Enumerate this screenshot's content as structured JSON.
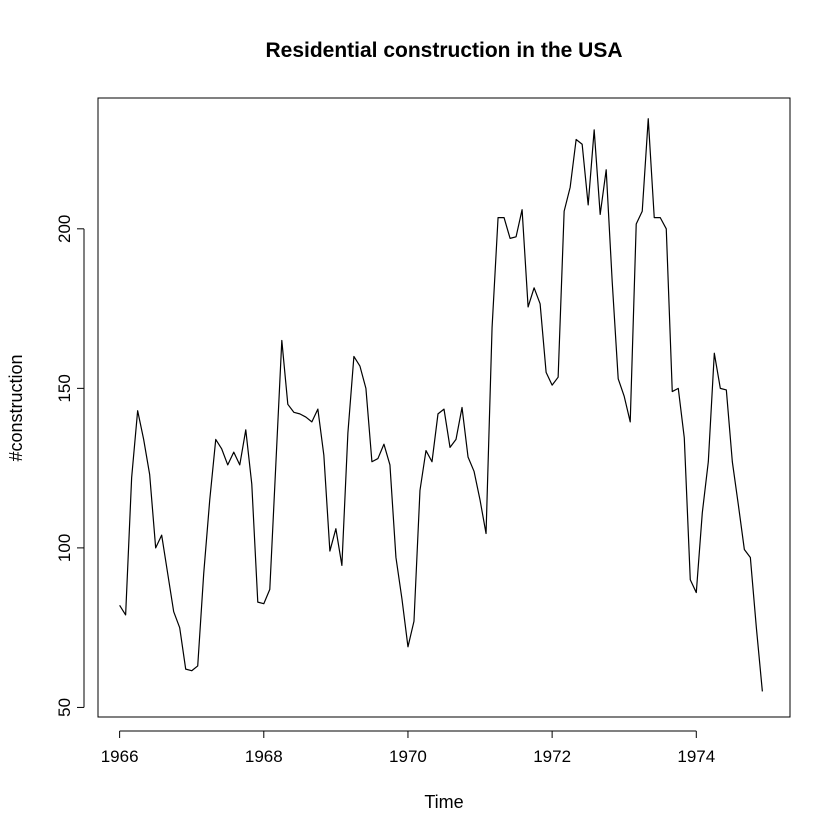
{
  "chart_data": {
    "type": "line",
    "title": "Residential construction in the USA",
    "xlabel": "Time",
    "ylabel": "#construction",
    "xlim": [
      1965.7,
      1975.3
    ],
    "ylim": [
      47,
      241
    ],
    "x_ticks": [
      1966,
      1968,
      1970,
      1972,
      1974
    ],
    "y_ticks": [
      50,
      100,
      150,
      200
    ],
    "x_tick_labels": [
      "1966",
      "1968",
      "1970",
      "1972",
      "1974"
    ],
    "y_tick_labels": [
      "50",
      "100",
      "150",
      "200"
    ],
    "grid": false,
    "legend": "none",
    "line_color": "#000000",
    "x_start": 1966.0,
    "x_step_months": 1,
    "series": [
      {
        "values": [
          82,
          79,
          122,
          143,
          134,
          123,
          100,
          104,
          92,
          80,
          75,
          62,
          61.5,
          63,
          92,
          115,
          134,
          131,
          126,
          130,
          126,
          137,
          120,
          83,
          82.5,
          87,
          126,
          165,
          145,
          142.5,
          142,
          141,
          139.5,
          143.5,
          129,
          99,
          106,
          94.5,
          136,
          160,
          157,
          150,
          127,
          128,
          132.5,
          126,
          97,
          84,
          69,
          77,
          118,
          130.5,
          127,
          142,
          143.5,
          131.5,
          134,
          144,
          128.5,
          124,
          115,
          104.5,
          169,
          203.5,
          203.5,
          197,
          197.5,
          206,
          175.5,
          181.5,
          176.5,
          155,
          151,
          153.5,
          205.5,
          213,
          228,
          226.5,
          207.5,
          231,
          204.5,
          218.5,
          183.5,
          153,
          147.5,
          139.5,
          201.5,
          205.5,
          234.5,
          203.5,
          203.5,
          200,
          149,
          150,
          134.5,
          90,
          86,
          111,
          127,
          161,
          150,
          149.5,
          127,
          113.5,
          99.5,
          97,
          75,
          55
        ]
      }
    ]
  }
}
